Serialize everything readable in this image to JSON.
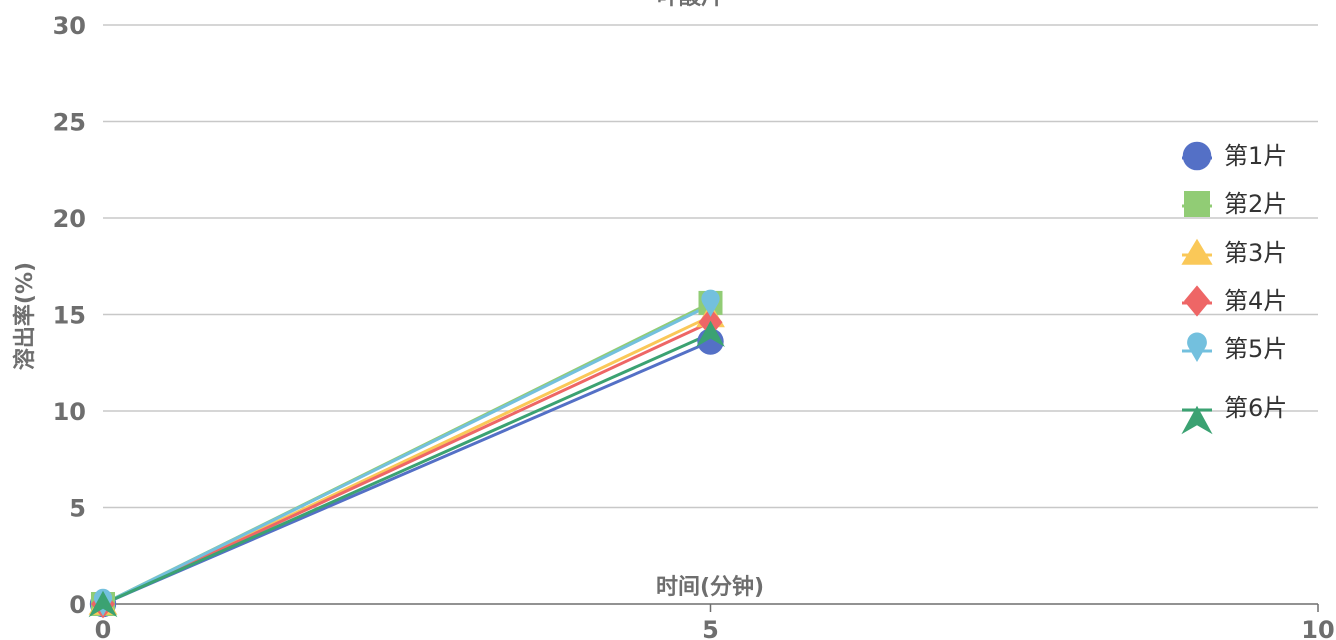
{
  "chart_data": {
    "type": "line",
    "title": "叶酸片",
    "xlabel": "时间(分钟)",
    "ylabel": "溶出率(%)",
    "xlim": [
      0,
      10
    ],
    "ylim": [
      0,
      30
    ],
    "x_ticks": [
      "0",
      "5",
      "10"
    ],
    "y_ticks": [
      "0",
      "5",
      "10",
      "15",
      "20",
      "25",
      "30"
    ],
    "grid": true,
    "legend_position": "right",
    "x": [
      0,
      5
    ],
    "series": [
      {
        "name": "第1片",
        "marker": "circle",
        "color": "#5470c6",
        "values": [
          0,
          13.6
        ]
      },
      {
        "name": "第2片",
        "marker": "square",
        "color": "#91cc75",
        "values": [
          0,
          15.6
        ]
      },
      {
        "name": "第3片",
        "marker": "triangle",
        "color": "#fac858",
        "values": [
          0,
          14.9
        ]
      },
      {
        "name": "第4片",
        "marker": "diamond",
        "color": "#ee6666",
        "values": [
          0,
          14.6
        ]
      },
      {
        "name": "第5片",
        "marker": "pin",
        "color": "#73c0de",
        "values": [
          0,
          15.5
        ]
      },
      {
        "name": "第6片",
        "marker": "arrow",
        "color": "#3ba272",
        "values": [
          0,
          14.0
        ]
      }
    ]
  }
}
